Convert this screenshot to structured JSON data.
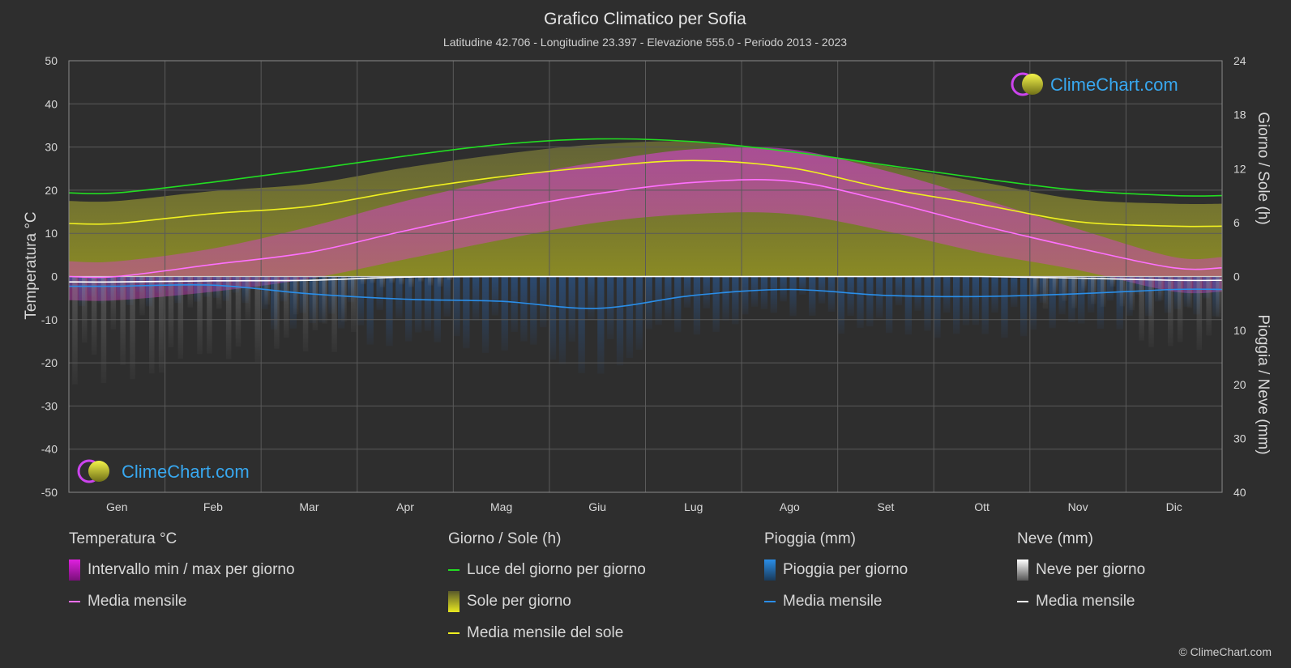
{
  "chart_data": {
    "type": "area",
    "title": "Grafico Climatico per Sofia",
    "subtitle": "Latitudine 42.706 - Longitudine 23.397 - Elevazione 555.0 - Periodo 2013 - 2023",
    "ylabel_left": "Temperatura °C",
    "ylabel_right_top": "Giorno / Sole (h)",
    "ylabel_right_bottom": "Pioggia / Neve (mm)",
    "categories": [
      "Gen",
      "Feb",
      "Mar",
      "Apr",
      "Mag",
      "Giu",
      "Lug",
      "Ago",
      "Set",
      "Ott",
      "Nov",
      "Dic"
    ],
    "ylim_left": [
      -50,
      50
    ],
    "yticks_left": [
      "50",
      "40",
      "30",
      "20",
      "10",
      "0",
      "-10",
      "-20",
      "-30",
      "-40",
      "-50"
    ],
    "yticks_right_top": [
      "24",
      "18",
      "12",
      "6",
      "0"
    ],
    "yticks_right_bottom": [
      "10",
      "20",
      "30",
      "40"
    ],
    "grid": true,
    "series": [
      {
        "name": "Luce del giorno per giorno",
        "unit": "h",
        "values": [
          9.3,
          10.5,
          11.9,
          13.4,
          14.7,
          15.3,
          15.0,
          13.9,
          12.4,
          10.9,
          9.6,
          9.0
        ]
      },
      {
        "name": "Media mensile del sole",
        "unit": "h",
        "values": [
          5.9,
          7.0,
          7.8,
          9.6,
          11.1,
          12.2,
          12.9,
          12.1,
          9.8,
          8.0,
          6.1,
          5.6
        ]
      },
      {
        "name": "Media mensile",
        "group": "Temperatura °C",
        "unit": "°C",
        "values": [
          0.0,
          2.8,
          5.6,
          10.6,
          15.3,
          19.2,
          21.8,
          22.1,
          17.5,
          11.8,
          6.6,
          2.0
        ]
      },
      {
        "name": "Media mensile",
        "group": "Pioggia (mm)",
        "unit": "mm",
        "values": [
          1.8,
          1.6,
          3.2,
          4.2,
          4.6,
          5.9,
          3.5,
          2.4,
          3.5,
          3.7,
          3.2,
          2.4
        ]
      },
      {
        "name": "Media mensile",
        "group": "Neve (mm)",
        "unit": "mm",
        "values": [
          1.0,
          0.8,
          0.7,
          0.1,
          0.0,
          0.0,
          0.0,
          0.0,
          0.0,
          0.0,
          0.3,
          0.7
        ]
      }
    ],
    "temp_daily_range": {
      "max": [
        3.5,
        6.5,
        11.5,
        17.5,
        22.5,
        26.5,
        29.5,
        29.5,
        24.5,
        18.0,
        11.0,
        4.5
      ],
      "min": [
        -5.5,
        -3.5,
        -0.5,
        4.0,
        8.5,
        12.5,
        14.5,
        14.5,
        10.5,
        5.5,
        1.5,
        -3.5
      ]
    }
  },
  "legend": {
    "temp": {
      "title": "Temperatura °C",
      "range": "Intervallo min / max per giorno",
      "mean": "Media mensile",
      "range_color": "#e020e0",
      "mean_color": "#ff70ff"
    },
    "sun": {
      "title": "Giorno / Sole (h)",
      "daylight": "Luce del giorno per giorno",
      "sun": "Sole per giorno",
      "mean": "Media mensile del sole",
      "daylight_color": "#22dd22",
      "sun_color": "#d8d820",
      "mean_color": "#f0f020"
    },
    "rain": {
      "title": "Pioggia (mm)",
      "rain": "Pioggia per giorno",
      "mean": "Media mensile",
      "rain_color": "#2a8ee8",
      "mean_color": "#2a8ee8"
    },
    "snow": {
      "title": "Neve (mm)",
      "snow": "Neve per giorno",
      "mean": "Media mensile",
      "snow_color": "#e8e8e8",
      "mean_color": "#ffffff"
    }
  },
  "logo_text": "ClimeChart.com",
  "copyright": "© ClimeChart.com"
}
